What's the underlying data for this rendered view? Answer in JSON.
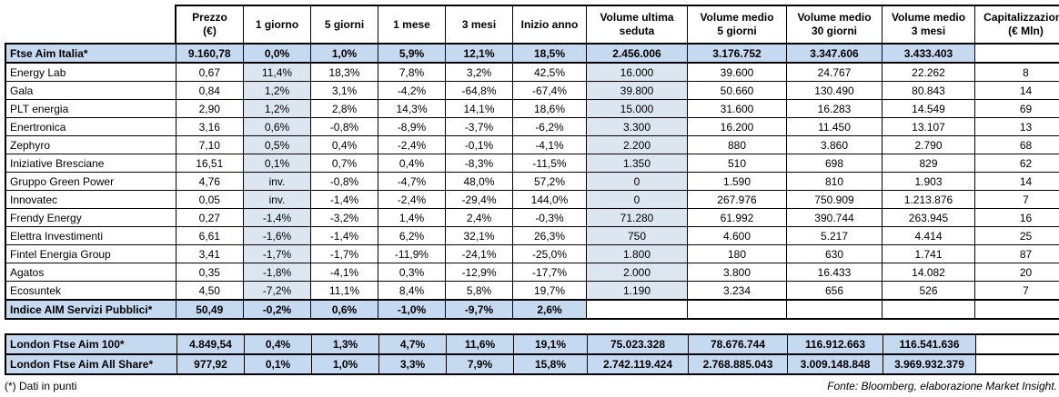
{
  "colors": {
    "index_row_bg": "#c5d9f1",
    "shaded_col_bg": "#dce6f1",
    "border": "#000000"
  },
  "footer": {
    "left": "(*) Dati in punti",
    "right": "Fonte: Bloomberg, elaborazione Market Insight."
  },
  "chart_data": {
    "type": "table",
    "columns": [
      {
        "lines": [
          ""
        ]
      },
      {
        "lines": [
          "Prezzo",
          "(€)"
        ]
      },
      {
        "lines": [
          "1 giorno"
        ]
      },
      {
        "lines": [
          "5 giorni"
        ]
      },
      {
        "lines": [
          "1 mese"
        ]
      },
      {
        "lines": [
          "3 mesi"
        ]
      },
      {
        "lines": [
          "Inizio anno"
        ]
      },
      {
        "lines": [
          "Volume ultima",
          "seduta"
        ]
      },
      {
        "lines": [
          "Volume medio",
          "5 giorni"
        ]
      },
      {
        "lines": [
          "Volume medio",
          "30 giorni"
        ]
      },
      {
        "lines": [
          "Volume medio",
          "3 mesi"
        ]
      },
      {
        "lines": [
          "Capitalizzazione",
          "(€ Mln)"
        ]
      }
    ],
    "main_rows": [
      {
        "name": "Ftse Aim Italia*",
        "type": "index",
        "values": [
          "9.160,78",
          "0,0%",
          "1,0%",
          "5,9%",
          "12,1%",
          "18,5%",
          "2.456.006",
          "3.176.752",
          "3.347.606",
          "3.433.403",
          ""
        ]
      },
      {
        "name": "Energy Lab",
        "type": "stock",
        "values": [
          "0,67",
          "11,4%",
          "18,3%",
          "7,8%",
          "3,2%",
          "42,5%",
          "16.000",
          "39.600",
          "24.767",
          "22.262",
          "8"
        ]
      },
      {
        "name": "Gala",
        "type": "stock",
        "values": [
          "0,84",
          "1,2%",
          "3,1%",
          "-4,2%",
          "-64,8%",
          "-67,4%",
          "39.800",
          "50.660",
          "130.490",
          "80.843",
          "14"
        ]
      },
      {
        "name": "PLT energia",
        "type": "stock",
        "values": [
          "2,90",
          "1,2%",
          "2,8%",
          "14,3%",
          "14,1%",
          "18,6%",
          "15.000",
          "31.600",
          "16.283",
          "14.549",
          "69"
        ]
      },
      {
        "name": "Enertronica",
        "type": "stock",
        "values": [
          "3,16",
          "0,6%",
          "-0,8%",
          "-8,9%",
          "-3,7%",
          "-6,2%",
          "3.300",
          "16.200",
          "11.450",
          "13.107",
          "13"
        ]
      },
      {
        "name": "Zephyro",
        "type": "stock",
        "values": [
          "7,10",
          "0,5%",
          "0,4%",
          "-2,4%",
          "-0,1%",
          "-4,1%",
          "2.200",
          "880",
          "3.860",
          "2.790",
          "68"
        ]
      },
      {
        "name": "Iniziative Bresciane",
        "type": "stock",
        "values": [
          "16,51",
          "0,1%",
          "0,7%",
          "0,4%",
          "-8,3%",
          "-11,5%",
          "1.350",
          "510",
          "698",
          "829",
          "62"
        ]
      },
      {
        "name": "Gruppo Green Power",
        "type": "stock",
        "values": [
          "4,76",
          "inv.",
          "-0,8%",
          "-4,7%",
          "48,0%",
          "57,2%",
          "0",
          "1.590",
          "810",
          "1.903",
          "14"
        ]
      },
      {
        "name": "Innovatec",
        "type": "stock",
        "values": [
          "0,05",
          "inv.",
          "-1,4%",
          "-2,4%",
          "-29,4%",
          "144,0%",
          "0",
          "267.976",
          "750.909",
          "1.213.876",
          "7"
        ]
      },
      {
        "name": "Frendy Energy",
        "type": "stock",
        "values": [
          "0,27",
          "-1,4%",
          "-3,2%",
          "1,4%",
          "2,4%",
          "-0,3%",
          "71.280",
          "61.992",
          "390.744",
          "263.945",
          "16"
        ]
      },
      {
        "name": "Elettra Investimenti",
        "type": "stock",
        "values": [
          "6,61",
          "-1,6%",
          "-1,4%",
          "6,2%",
          "32,1%",
          "26,3%",
          "750",
          "4.600",
          "5.217",
          "4.414",
          "25"
        ]
      },
      {
        "name": "Fintel Energia Group",
        "type": "stock",
        "values": [
          "3,41",
          "-1,7%",
          "-1,7%",
          "-11,9%",
          "-24,1%",
          "-25,0%",
          "1.800",
          "180",
          "630",
          "1.741",
          "87"
        ]
      },
      {
        "name": "Agatos",
        "type": "stock",
        "values": [
          "0,35",
          "-1,8%",
          "-4,1%",
          "0,3%",
          "-12,9%",
          "-17,7%",
          "2.000",
          "3.800",
          "16.433",
          "14.082",
          "20"
        ]
      },
      {
        "name": "Ecosuntek",
        "type": "stock",
        "values": [
          "4,50",
          "-7,2%",
          "11,1%",
          "8,4%",
          "5,8%",
          "19,7%",
          "1.190",
          "3.234",
          "656",
          "526",
          "7"
        ]
      },
      {
        "name": "Indice AIM Servizi Pubblici*",
        "type": "index",
        "values": [
          "50,49",
          "-0,2%",
          "0,6%",
          "-1,0%",
          "-9,7%",
          "2,6%",
          "",
          "",
          "",
          "",
          ""
        ]
      }
    ],
    "secondary_rows": [
      {
        "name": "London Ftse Aim 100*",
        "type": "index",
        "values": [
          "4.849,54",
          "0,4%",
          "1,3%",
          "4,7%",
          "11,6%",
          "19,1%",
          "75.023.328",
          "78.676.744",
          "116.912.663",
          "116.541.636",
          ""
        ]
      },
      {
        "name": "London Ftse Aim All Share*",
        "type": "index",
        "values": [
          "977,92",
          "0,1%",
          "1,0%",
          "3,3%",
          "7,9%",
          "15,8%",
          "2.742.119.424",
          "2.768.885.043",
          "3.009.148.848",
          "3.969.932.379",
          ""
        ]
      }
    ]
  }
}
